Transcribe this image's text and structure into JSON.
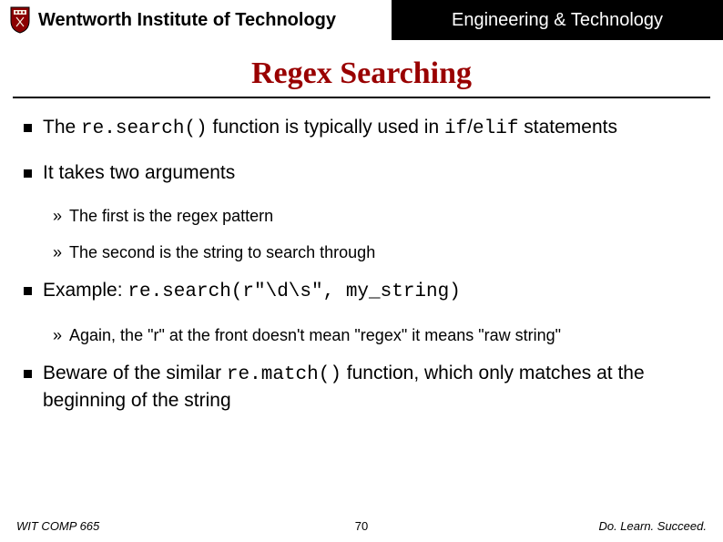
{
  "header": {
    "institution": "Wentworth Institute of Technology",
    "department": "Engineering & Technology",
    "shield_colors": {
      "bg": "#8b0000",
      "border": "#000000",
      "panel": "#f5f0e0"
    }
  },
  "title": {
    "text": "Regex Searching",
    "color": "#990000",
    "font_family": "Georgia",
    "font_size": 34,
    "rule_color": "#000000"
  },
  "bullets": [
    {
      "html": "The <span class='mono'>re.search()</span> function is typically used in <span class='mono'>if</span>/<span class='mono'>elif</span> statements",
      "subs": []
    },
    {
      "html": "It takes two arguments",
      "subs": [
        {
          "html": "The first is the regex pattern"
        },
        {
          "html": "The second is the string to search through"
        }
      ]
    },
    {
      "html": "Example: <span class='mono'>re.search(r\"\\d\\s\", my_string)</span>",
      "subs": [
        {
          "html": "Again, the \"r\" at the front doesn't mean \"regex\" it means \"raw string\""
        }
      ]
    },
    {
      "html": "Beware of the similar <span class='mono'>re.match()</span> function, which only matches at the beginning of the string",
      "subs": []
    }
  ],
  "footer": {
    "course": "WIT COMP 665",
    "page": "70",
    "tagline": "Do. Learn. Succeed."
  },
  "colors": {
    "background": "#ffffff",
    "text": "#000000",
    "header_right_bg": "#000000",
    "header_right_fg": "#ffffff"
  }
}
